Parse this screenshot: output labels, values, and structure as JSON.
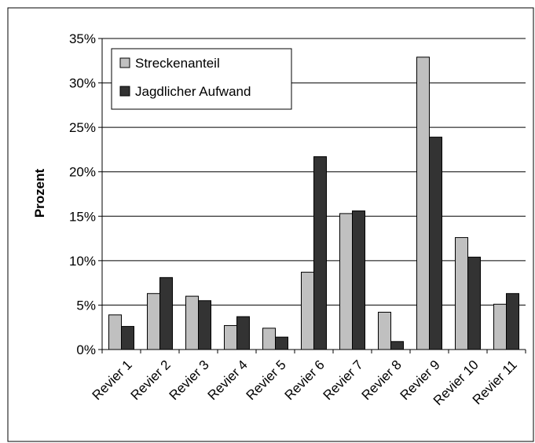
{
  "chart_data": {
    "type": "bar",
    "title": "",
    "xlabel": "",
    "ylabel": "Prozent",
    "ylim": [
      0,
      35
    ],
    "y_ticks": [
      0,
      5,
      10,
      15,
      20,
      25,
      30,
      35
    ],
    "y_tick_suffix": "%",
    "grid": "horizontal",
    "legend_position": "top-left",
    "categories": [
      "Revier 1",
      "Revier 2",
      "Revier 3",
      "Revier 4",
      "Revier 5",
      "Revier 6",
      "Revier 7",
      "Revier 8",
      "Revier 9",
      "Revier 10",
      "Revier 11"
    ],
    "series": [
      {
        "name": "Streckenanteil",
        "color": "#c0c0c0",
        "values": [
          3.9,
          6.3,
          6.0,
          2.7,
          2.4,
          8.7,
          15.3,
          4.2,
          32.9,
          12.6,
          5.1
        ]
      },
      {
        "name": "Jagdlicher Aufwand",
        "color": "#333333",
        "values": [
          2.6,
          8.1,
          5.5,
          3.7,
          1.4,
          21.7,
          15.6,
          0.9,
          23.9,
          10.4,
          6.3
        ]
      }
    ]
  }
}
